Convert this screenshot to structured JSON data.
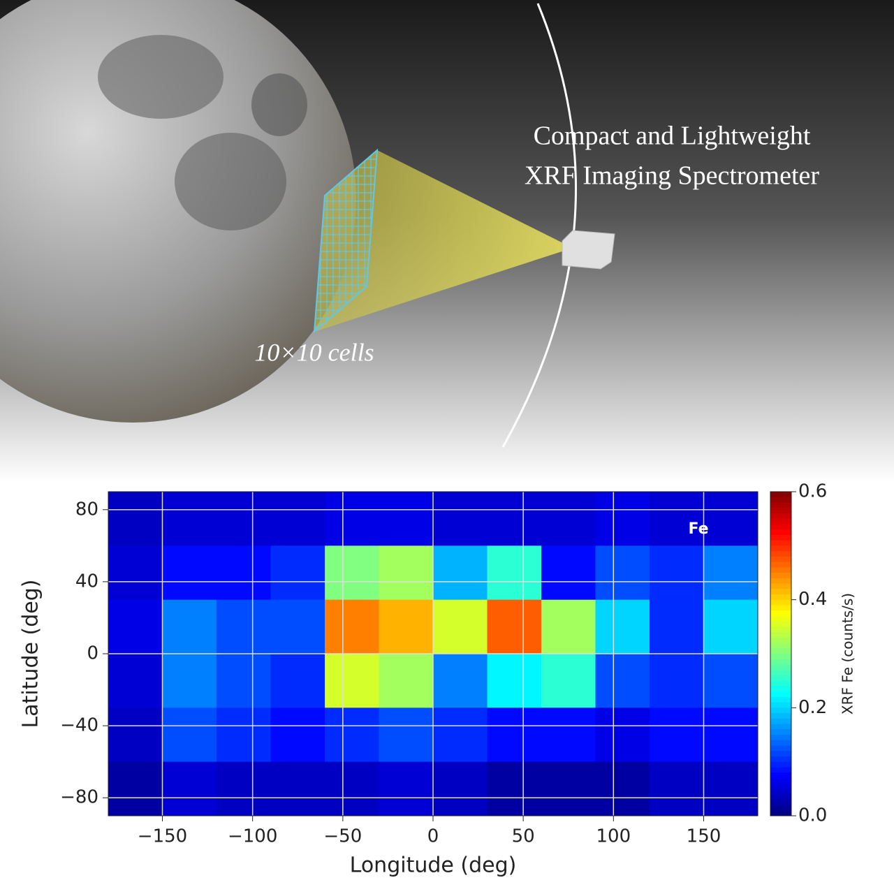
{
  "illustration": {
    "title_lines": [
      "Compact and Lightweight",
      "XRF Imaging Spectrometer"
    ],
    "cells_label": "10×10 cells"
  },
  "chart_data": {
    "type": "heatmap",
    "annotation": "Fe",
    "xlabel": "Longitude (deg)",
    "ylabel": "Latitude (deg)",
    "xlim": [
      -180,
      180
    ],
    "ylim": [
      -90,
      90
    ],
    "xticks": [
      {
        "value": -150,
        "label": "−150"
      },
      {
        "value": -100,
        "label": "−100"
      },
      {
        "value": -50,
        "label": "−50"
      },
      0,
      50,
      100,
      150
    ],
    "yticks": [
      {
        "value": -80,
        "label": "−80"
      },
      {
        "value": -40,
        "label": "−40"
      },
      0,
      40,
      80
    ],
    "xbins": [
      -180,
      -150,
      -120,
      -90,
      -60,
      -30,
      0,
      30,
      60,
      90,
      120,
      150,
      180
    ],
    "ybins": [
      90,
      60,
      30,
      0,
      -30,
      -60,
      -90
    ],
    "values": [
      [
        0.04,
        0.05,
        0.05,
        0.05,
        0.06,
        0.06,
        0.05,
        0.05,
        0.05,
        0.06,
        0.05,
        0.05
      ],
      [
        0.05,
        0.08,
        0.08,
        0.1,
        0.3,
        0.32,
        0.18,
        0.25,
        0.08,
        0.12,
        0.1,
        0.15
      ],
      [
        0.06,
        0.15,
        0.12,
        0.12,
        0.45,
        0.42,
        0.35,
        0.47,
        0.32,
        0.2,
        0.1,
        0.2
      ],
      [
        0.05,
        0.15,
        0.12,
        0.1,
        0.35,
        0.32,
        0.15,
        0.22,
        0.25,
        0.12,
        0.1,
        0.12
      ],
      [
        0.04,
        0.12,
        0.1,
        0.08,
        0.1,
        0.12,
        0.1,
        0.08,
        0.08,
        0.06,
        0.08,
        0.08
      ],
      [
        0.02,
        0.05,
        0.04,
        0.04,
        0.04,
        0.05,
        0.04,
        0.02,
        0.02,
        0.02,
        0.04,
        0.04
      ]
    ],
    "colormap": "jet",
    "clim": [
      0,
      0.6
    ],
    "cticks": [
      {
        "value": 0,
        "label": "0.0"
      },
      0.2,
      0.4,
      0.6
    ],
    "clabel": "XRF Fe (counts/s)",
    "grid": true
  }
}
